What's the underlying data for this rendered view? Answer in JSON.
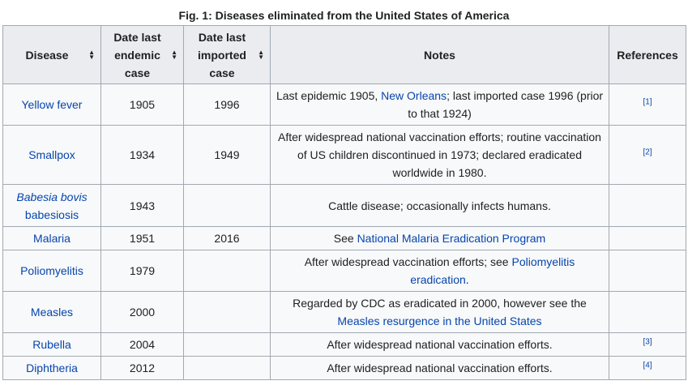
{
  "caption": "Fig. 1: Diseases eliminated from the United States of America",
  "headers": {
    "disease": "Disease",
    "endemic_1": "Date last",
    "endemic_2": "endemic",
    "endemic_3": "case",
    "imported_1": "Date last",
    "imported_2": "imported",
    "imported_3": "case",
    "notes": "Notes",
    "references": "References"
  },
  "sort_icon": "sort-arrows-icon",
  "rows": [
    {
      "disease": "Yellow fever",
      "endemic": "1905",
      "imported": "1996",
      "notes": {
        "pre": "Last epidemic 1905, ",
        "link": "New Orleans",
        "post": "; last imported case 1996 (prior to that 1924)"
      },
      "ref": "[1]"
    },
    {
      "disease": "Smallpox",
      "endemic": "1934",
      "imported": "1949",
      "notes": {
        "pre": "After widespread national vaccination efforts; routine vaccination of US children discontinued in 1973; declared eradicated worldwide in 1980.",
        "link": "",
        "post": ""
      },
      "ref": "[2]"
    },
    {
      "disease_italic": "Babesia bovis",
      "disease_rest": " babesiosis",
      "endemic": "1943",
      "imported": "",
      "notes": {
        "pre": "Cattle disease; occasionally infects humans.",
        "link": "",
        "post": ""
      },
      "ref": ""
    },
    {
      "disease": "Malaria",
      "endemic": "1951",
      "imported": "2016",
      "notes": {
        "pre": "See ",
        "link": "National Malaria Eradication Program",
        "post": ""
      },
      "ref": ""
    },
    {
      "disease": "Poliomyelitis",
      "endemic": "1979",
      "imported": "",
      "notes": {
        "pre": "After widespread vaccination efforts; see ",
        "link": "Poliomyelitis eradication",
        "post": "."
      },
      "ref": ""
    },
    {
      "disease": "Measles",
      "endemic": "2000",
      "imported": "",
      "notes": {
        "pre": "Regarded by CDC as eradicated in 2000, however see the ",
        "link": "Measles resurgence in the United States",
        "post": ""
      },
      "ref": ""
    },
    {
      "disease": "Rubella",
      "endemic": "2004",
      "imported": "",
      "notes": {
        "pre": "After widespread national vaccination efforts.",
        "link": "",
        "post": ""
      },
      "ref": "[3]"
    },
    {
      "disease": "Diphtheria",
      "endemic": "2012",
      "imported": "",
      "notes": {
        "pre": "After widespread national vaccination efforts.",
        "link": "",
        "post": ""
      },
      "ref": "[4]"
    }
  ]
}
